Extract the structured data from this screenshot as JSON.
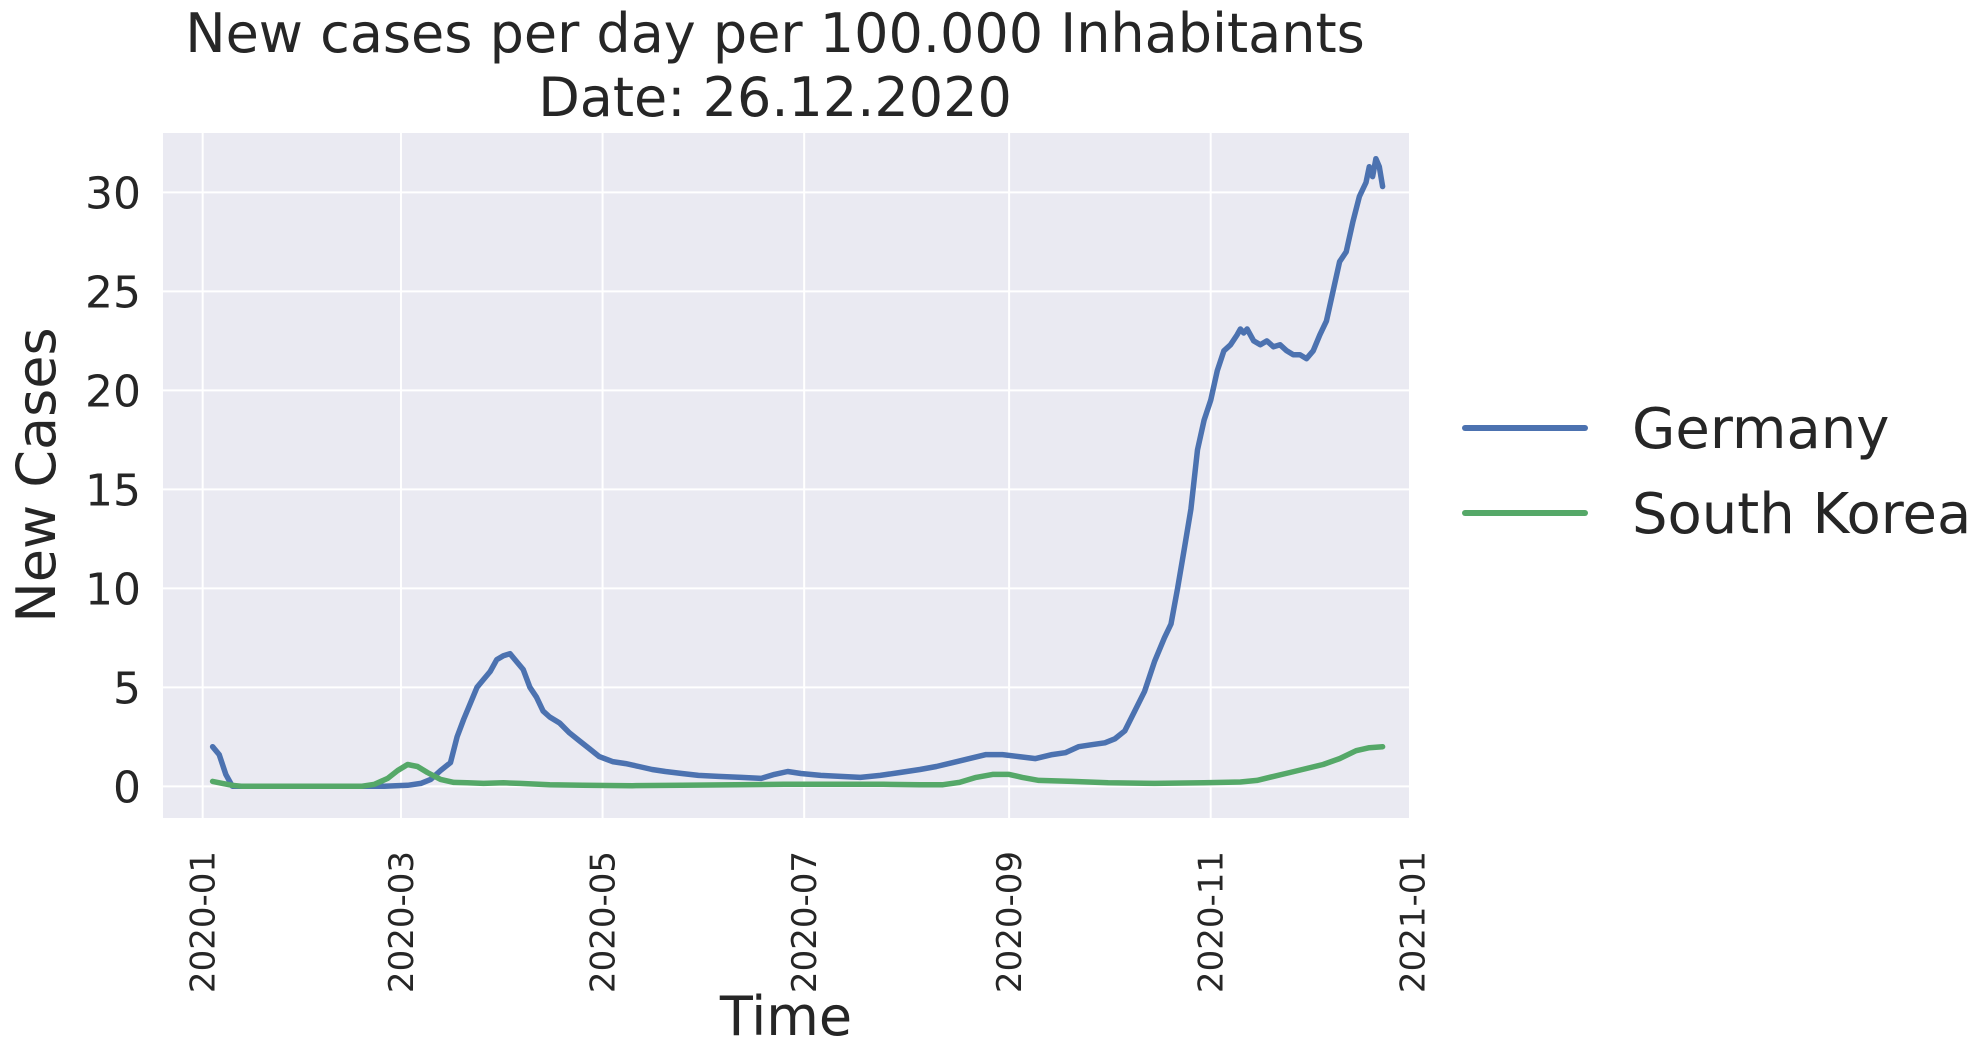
{
  "chart_data": {
    "type": "line",
    "title_line1": "New cases per day per 100.000 Inhabitants",
    "title_line2": "Date: 26.12.2020",
    "xlabel": "Time",
    "ylabel": "New Cases",
    "x_ticks": [
      "2020-01",
      "2020-03",
      "2020-05",
      "2020-07",
      "2020-09",
      "2020-11",
      "2021-01"
    ],
    "y_ticks": [
      0,
      5,
      10,
      15,
      20,
      25,
      30
    ],
    "xlim": [
      "2019-12-20",
      "2020-12-31"
    ],
    "ylim": [
      -1.6,
      33.0
    ],
    "grid": true,
    "background": "#eaeaf2",
    "legend_position": "right",
    "series": [
      {
        "name": "Germany",
        "color": "#4c72b0",
        "points": [
          [
            "2020-01-04",
            2.0
          ],
          [
            "2020-01-06",
            1.6
          ],
          [
            "2020-01-08",
            0.6
          ],
          [
            "2020-01-10",
            0.0
          ],
          [
            "2020-02-01",
            0.0
          ],
          [
            "2020-02-25",
            0.0
          ],
          [
            "2020-03-03",
            0.05
          ],
          [
            "2020-03-07",
            0.15
          ],
          [
            "2020-03-10",
            0.35
          ],
          [
            "2020-03-13",
            0.8
          ],
          [
            "2020-03-16",
            1.2
          ],
          [
            "2020-03-18",
            2.5
          ],
          [
            "2020-03-20",
            3.4
          ],
          [
            "2020-03-22",
            4.2
          ],
          [
            "2020-03-24",
            5.0
          ],
          [
            "2020-03-26",
            5.4
          ],
          [
            "2020-03-28",
            5.8
          ],
          [
            "2020-03-30",
            6.4
          ],
          [
            "2020-04-01",
            6.6
          ],
          [
            "2020-04-03",
            6.7
          ],
          [
            "2020-04-05",
            6.3
          ],
          [
            "2020-04-07",
            5.9
          ],
          [
            "2020-04-09",
            5.0
          ],
          [
            "2020-04-11",
            4.5
          ],
          [
            "2020-04-13",
            3.8
          ],
          [
            "2020-04-15",
            3.5
          ],
          [
            "2020-04-18",
            3.2
          ],
          [
            "2020-04-21",
            2.7
          ],
          [
            "2020-04-24",
            2.3
          ],
          [
            "2020-04-27",
            1.9
          ],
          [
            "2020-04-30",
            1.5
          ],
          [
            "2020-05-04",
            1.25
          ],
          [
            "2020-05-08",
            1.15
          ],
          [
            "2020-05-12",
            1.0
          ],
          [
            "2020-05-16",
            0.85
          ],
          [
            "2020-05-20",
            0.75
          ],
          [
            "2020-05-25",
            0.65
          ],
          [
            "2020-05-30",
            0.55
          ],
          [
            "2020-06-05",
            0.5
          ],
          [
            "2020-06-12",
            0.45
          ],
          [
            "2020-06-18",
            0.4
          ],
          [
            "2020-06-22",
            0.6
          ],
          [
            "2020-06-26",
            0.75
          ],
          [
            "2020-06-30",
            0.65
          ],
          [
            "2020-07-06",
            0.55
          ],
          [
            "2020-07-12",
            0.5
          ],
          [
            "2020-07-18",
            0.45
          ],
          [
            "2020-07-24",
            0.55
          ],
          [
            "2020-07-30",
            0.7
          ],
          [
            "2020-08-05",
            0.85
          ],
          [
            "2020-08-10",
            1.0
          ],
          [
            "2020-08-15",
            1.2
          ],
          [
            "2020-08-20",
            1.4
          ],
          [
            "2020-08-25",
            1.6
          ],
          [
            "2020-08-30",
            1.6
          ],
          [
            "2020-09-04",
            1.5
          ],
          [
            "2020-09-09",
            1.4
          ],
          [
            "2020-09-14",
            1.6
          ],
          [
            "2020-09-18",
            1.7
          ],
          [
            "2020-09-22",
            2.0
          ],
          [
            "2020-09-26",
            2.1
          ],
          [
            "2020-09-30",
            2.2
          ],
          [
            "2020-10-03",
            2.4
          ],
          [
            "2020-10-06",
            2.8
          ],
          [
            "2020-10-09",
            3.8
          ],
          [
            "2020-10-12",
            4.8
          ],
          [
            "2020-10-15",
            6.3
          ],
          [
            "2020-10-18",
            7.5
          ],
          [
            "2020-10-20",
            8.2
          ],
          [
            "2020-10-22",
            10.0
          ],
          [
            "2020-10-24",
            12.0
          ],
          [
            "2020-10-26",
            14.0
          ],
          [
            "2020-10-28",
            17.0
          ],
          [
            "2020-10-30",
            18.5
          ],
          [
            "2020-11-01",
            19.5
          ],
          [
            "2020-11-03",
            21.0
          ],
          [
            "2020-11-05",
            22.0
          ],
          [
            "2020-11-07",
            22.3
          ],
          [
            "2020-11-09",
            22.8
          ],
          [
            "2020-11-10",
            23.1
          ],
          [
            "2020-11-11",
            22.9
          ],
          [
            "2020-11-12",
            23.1
          ],
          [
            "2020-11-14",
            22.5
          ],
          [
            "2020-11-16",
            22.3
          ],
          [
            "2020-11-18",
            22.5
          ],
          [
            "2020-11-20",
            22.2
          ],
          [
            "2020-11-22",
            22.3
          ],
          [
            "2020-11-24",
            22.0
          ],
          [
            "2020-11-26",
            21.8
          ],
          [
            "2020-11-28",
            21.8
          ],
          [
            "2020-11-30",
            21.6
          ],
          [
            "2020-12-02",
            22.0
          ],
          [
            "2020-12-04",
            22.8
          ],
          [
            "2020-12-06",
            23.5
          ],
          [
            "2020-12-08",
            25.0
          ],
          [
            "2020-12-10",
            26.5
          ],
          [
            "2020-12-12",
            27.0
          ],
          [
            "2020-12-14",
            28.5
          ],
          [
            "2020-12-16",
            29.8
          ],
          [
            "2020-12-18",
            30.5
          ],
          [
            "2020-12-19",
            31.3
          ],
          [
            "2020-12-20",
            30.8
          ],
          [
            "2020-12-21",
            31.7
          ],
          [
            "2020-12-22",
            31.3
          ],
          [
            "2020-12-23",
            30.3
          ]
        ]
      },
      {
        "name": "South Korea",
        "color": "#55a868",
        "points": [
          [
            "2020-01-04",
            0.25
          ],
          [
            "2020-01-07",
            0.15
          ],
          [
            "2020-01-10",
            0.05
          ],
          [
            "2020-01-13",
            0.0
          ],
          [
            "2020-02-10",
            0.0
          ],
          [
            "2020-02-18",
            0.0
          ],
          [
            "2020-02-22",
            0.1
          ],
          [
            "2020-02-26",
            0.4
          ],
          [
            "2020-02-29",
            0.8
          ],
          [
            "2020-03-03",
            1.1
          ],
          [
            "2020-03-06",
            1.0
          ],
          [
            "2020-03-09",
            0.7
          ],
          [
            "2020-03-13",
            0.35
          ],
          [
            "2020-03-17",
            0.2
          ],
          [
            "2020-03-21",
            0.18
          ],
          [
            "2020-03-26",
            0.15
          ],
          [
            "2020-04-01",
            0.18
          ],
          [
            "2020-04-06",
            0.15
          ],
          [
            "2020-04-15",
            0.08
          ],
          [
            "2020-04-25",
            0.05
          ],
          [
            "2020-05-10",
            0.03
          ],
          [
            "2020-05-25",
            0.05
          ],
          [
            "2020-06-10",
            0.08
          ],
          [
            "2020-06-25",
            0.1
          ],
          [
            "2020-07-10",
            0.1
          ],
          [
            "2020-07-25",
            0.1
          ],
          [
            "2020-08-05",
            0.08
          ],
          [
            "2020-08-12",
            0.08
          ],
          [
            "2020-08-17",
            0.2
          ],
          [
            "2020-08-22",
            0.45
          ],
          [
            "2020-08-27",
            0.6
          ],
          [
            "2020-09-01",
            0.6
          ],
          [
            "2020-09-05",
            0.45
          ],
          [
            "2020-09-10",
            0.3
          ],
          [
            "2020-09-20",
            0.25
          ],
          [
            "2020-10-01",
            0.18
          ],
          [
            "2020-10-15",
            0.15
          ],
          [
            "2020-10-30",
            0.18
          ],
          [
            "2020-11-10",
            0.22
          ],
          [
            "2020-11-15",
            0.3
          ],
          [
            "2020-11-20",
            0.5
          ],
          [
            "2020-11-25",
            0.7
          ],
          [
            "2020-11-30",
            0.9
          ],
          [
            "2020-12-05",
            1.1
          ],
          [
            "2020-12-10",
            1.4
          ],
          [
            "2020-12-15",
            1.8
          ],
          [
            "2020-12-19",
            1.95
          ],
          [
            "2020-12-23",
            2.0
          ]
        ]
      }
    ]
  }
}
